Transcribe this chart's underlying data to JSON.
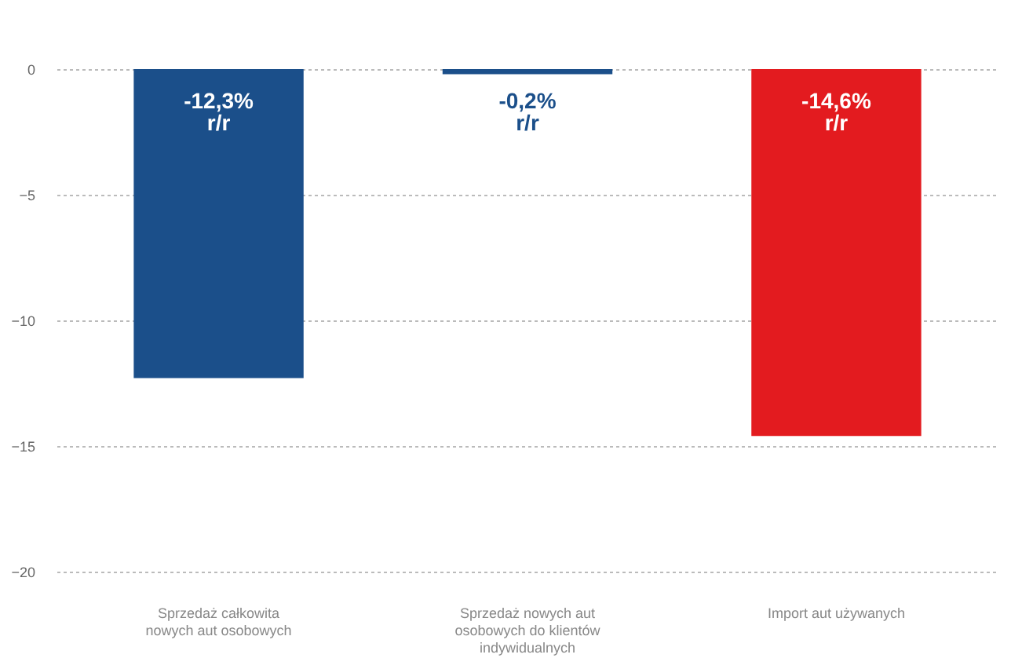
{
  "chart_data": {
    "type": "bar",
    "categories": [
      "Sprzedaż całkowita nowych aut osobowych",
      "Sprzedaż nowych aut osobowych do klientów indywidualnych",
      "Import aut używanych"
    ],
    "values": [
      -12.3,
      -0.2,
      -14.6
    ],
    "colors": [
      "#1b4f8a",
      "#1b4f8a",
      "#e31b1f"
    ],
    "value_labels": [
      "-12,3% r/r",
      "-0,2% r/r",
      "-14,6% r/r"
    ],
    "ylim": [
      -20,
      0
    ],
    "yticks": [
      0,
      -5,
      -10,
      -15,
      -20
    ],
    "grid": "y"
  }
}
